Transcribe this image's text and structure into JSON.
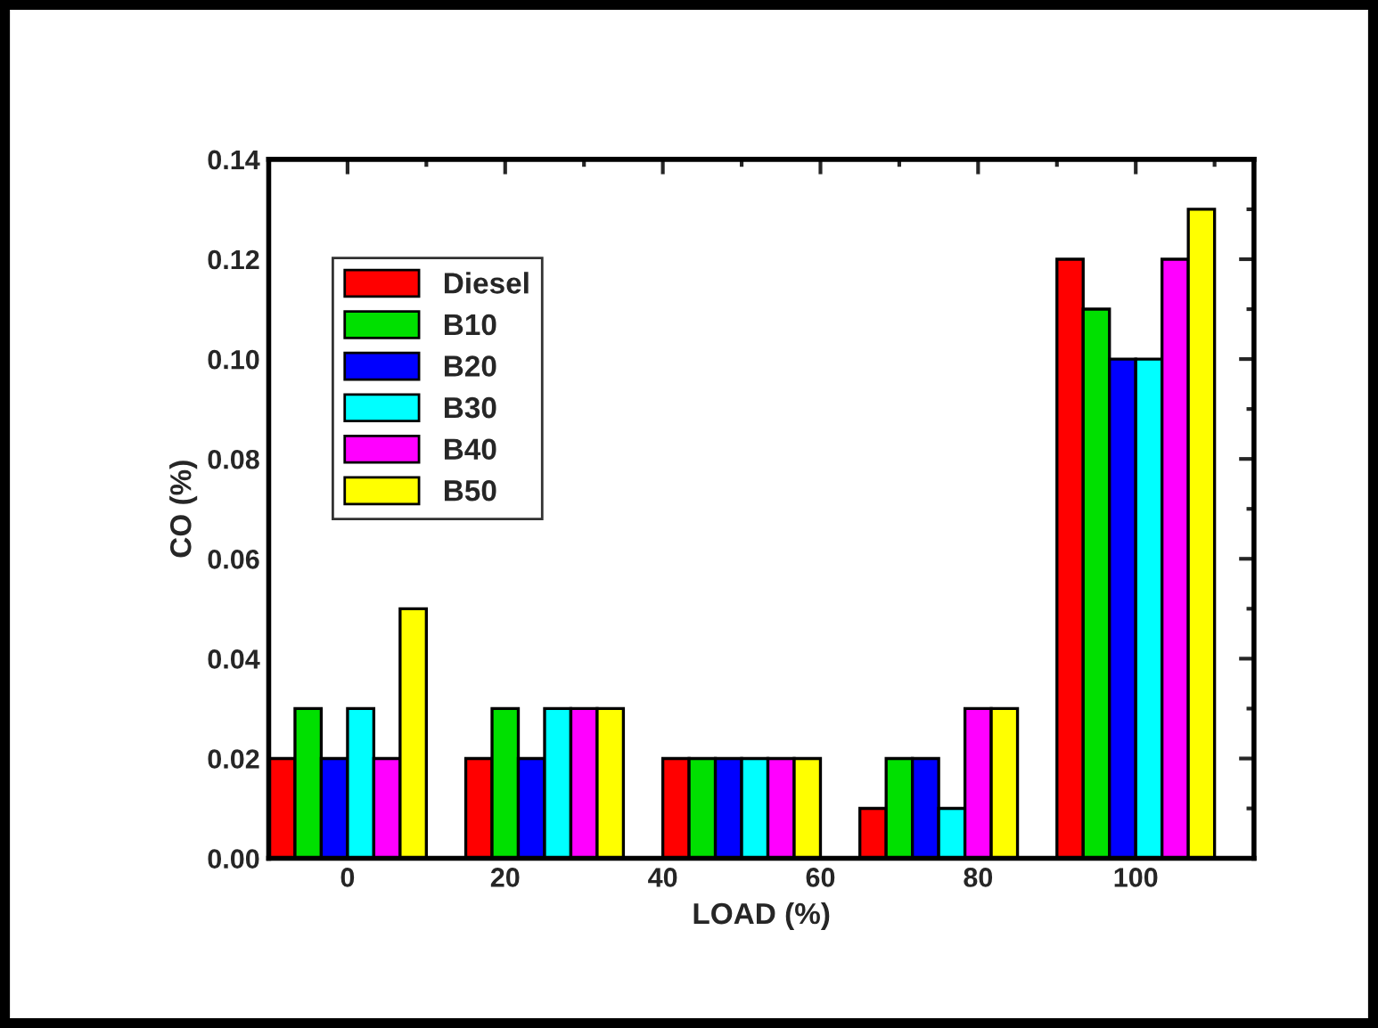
{
  "chart_data": {
    "type": "bar",
    "xlabel": "LOAD (%)",
    "ylabel": "CO (%)",
    "x": [
      0,
      25,
      50,
      75,
      100
    ],
    "series": [
      {
        "name": "Diesel",
        "color": "#ff0000",
        "values": [
          0.02,
          0.02,
          0.02,
          0.01,
          0.12
        ]
      },
      {
        "name": "B10",
        "color": "#00e000",
        "values": [
          0.03,
          0.03,
          0.02,
          0.02,
          0.11
        ]
      },
      {
        "name": "B20",
        "color": "#0000ff",
        "values": [
          0.02,
          0.02,
          0.02,
          0.02,
          0.1
        ]
      },
      {
        "name": "B30",
        "color": "#00ffff",
        "values": [
          0.03,
          0.03,
          0.02,
          0.01,
          0.1
        ]
      },
      {
        "name": "B40",
        "color": "#ff00ff",
        "values": [
          0.02,
          0.03,
          0.02,
          0.03,
          0.12
        ]
      },
      {
        "name": "B50",
        "color": "#ffff00",
        "values": [
          0.05,
          0.03,
          0.02,
          0.03,
          0.13
        ]
      }
    ],
    "xlim": [
      -10,
      115
    ],
    "xticks": [
      0,
      20,
      40,
      60,
      80,
      100
    ],
    "ylim": [
      0,
      0.14
    ],
    "yticks": [
      {
        "value": 0,
        "label": "0.00"
      },
      {
        "value": 0.02,
        "label": "0.02"
      },
      {
        "value": 0.04,
        "label": "0.04"
      },
      {
        "value": 0.06,
        "label": "0.06"
      },
      {
        "value": 0.08,
        "label": "0.08"
      },
      {
        "value": 0.1,
        "label": "0.10"
      },
      {
        "value": 0.12,
        "label": "0.12"
      },
      {
        "value": 0.14,
        "label": "0.14"
      }
    ],
    "legend": "top left",
    "grid": false
  }
}
